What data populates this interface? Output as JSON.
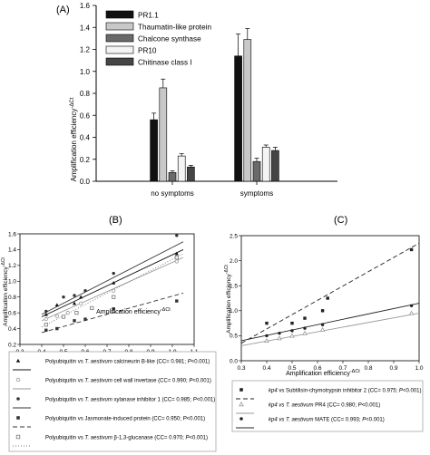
{
  "chart_data": [
    {
      "panel": "(A)",
      "type": "bar",
      "ylabel": "Amplification efficiency",
      "ylabel_sup": "-ΔCt",
      "ylim": [
        0,
        1.6
      ],
      "yticks": [
        "0.0",
        "0.2",
        "0.4",
        "0.6",
        "0.8",
        "1.0",
        "1.2",
        "1.4",
        "1.6"
      ],
      "categories": [
        "no symptoms",
        "symptoms"
      ],
      "legend_position": "top-left",
      "series": [
        {
          "name": "PR1.1",
          "color": "#111111",
          "values": [
            0.56,
            1.14
          ],
          "errors": [
            0.06,
            0.2
          ]
        },
        {
          "name": "Thaumatin-like protein",
          "color": "#c8c8c8",
          "values": [
            0.85,
            1.29
          ],
          "errors": [
            0.08,
            0.1
          ]
        },
        {
          "name": "Chalcone synthase",
          "color": "#6a6a6a",
          "values": [
            0.08,
            0.18
          ],
          "errors": [
            0.015,
            0.03
          ]
        },
        {
          "name": "PR10",
          "color": "#f4f4f4",
          "values": [
            0.23,
            0.31
          ],
          "errors": [
            0.02,
            0.02
          ]
        },
        {
          "name": "Chitinase class I",
          "color": "#454545",
          "values": [
            0.13,
            0.28
          ],
          "errors": [
            0.015,
            0.03
          ]
        }
      ]
    },
    {
      "panel": "(B)",
      "type": "scatter",
      "xlabel": "Amplification efficiency",
      "xlabel_sup": "-ΔCt",
      "ylabel": "Amplification efficiency",
      "ylabel_sup": "-ΔCt",
      "xlim": [
        0.3,
        1.1
      ],
      "ylim": [
        0.2,
        1.6
      ],
      "xticks": [
        "0.3",
        "0.4",
        "0.5",
        "0.6",
        "0.7",
        "0.8",
        "0.9",
        "1.0",
        "1.1"
      ],
      "yticks": [
        "0.2",
        "0.4",
        "0.6",
        "0.8",
        "1.0",
        "1.2",
        "1.4",
        "1.6"
      ],
      "series": [
        {
          "symbol": "triangle",
          "dash": "",
          "color": "#111111",
          "points": [
            [
              0.42,
              0.58
            ],
            [
              0.47,
              0.7
            ],
            [
              0.55,
              0.72
            ],
            [
              0.58,
              0.8
            ],
            [
              0.73,
              0.98
            ],
            [
              1.02,
              1.35
            ]
          ],
          "line": [
            [
              0.4,
              0.55
            ],
            [
              1.05,
              1.4
            ]
          ],
          "legend": [
            "Polyubiquitin vs ",
            "T. aestivum",
            " calcineurin B-like (CC= 0.981; ",
            "P",
            "<0.001)"
          ]
        },
        {
          "symbol": "circle-open",
          "dash": "",
          "color": "#999999",
          "points": [
            [
              0.42,
              0.52
            ],
            [
              0.47,
              0.56
            ],
            [
              0.52,
              0.6
            ],
            [
              0.58,
              0.72
            ],
            [
              0.73,
              0.88
            ],
            [
              1.02,
              1.25
            ]
          ],
          "line": [
            [
              0.4,
              0.5
            ],
            [
              1.05,
              1.3
            ]
          ],
          "legend": [
            "Polyubiquitin vs ",
            "T. aestivum",
            " cell wall invertase (CC= 0.990; ",
            "P",
            "<0.001)"
          ]
        },
        {
          "symbol": "circle",
          "dash": "",
          "color": "#333333",
          "points": [
            [
              0.42,
              0.62
            ],
            [
              0.5,
              0.8
            ],
            [
              0.55,
              0.82
            ],
            [
              0.6,
              0.88
            ],
            [
              0.73,
              1.1
            ],
            [
              1.02,
              1.58
            ]
          ],
          "line": [
            [
              0.4,
              0.58
            ],
            [
              1.05,
              1.5
            ]
          ],
          "legend": [
            "Polyubiquitin vs ",
            "T. aestivum",
            " xylanase inhibitor 1 (CC= 0.985; ",
            "P",
            "<0.001)"
          ]
        },
        {
          "symbol": "square",
          "dash": "5,3",
          "color": "#333333",
          "points": [
            [
              0.42,
              0.38
            ],
            [
              0.47,
              0.4
            ],
            [
              0.55,
              0.5
            ],
            [
              0.6,
              0.52
            ],
            [
              0.73,
              0.65
            ],
            [
              1.02,
              0.75
            ]
          ],
          "line": [
            [
              0.4,
              0.35
            ],
            [
              1.05,
              0.85
            ]
          ],
          "legend": [
            "Polyubiquitin vs Jasmonate-induced protein (CC= 0.950; ",
            "",
            "",
            "P",
            "<0.001)"
          ]
        },
        {
          "symbol": "square-open",
          "dash": "1,2",
          "color": "#777777",
          "points": [
            [
              0.42,
              0.45
            ],
            [
              0.5,
              0.55
            ],
            [
              0.56,
              0.6
            ],
            [
              0.63,
              0.66
            ],
            [
              0.73,
              0.8
            ],
            [
              1.02,
              1.3
            ]
          ],
          "line": [
            [
              0.4,
              0.42
            ],
            [
              1.05,
              1.35
            ]
          ],
          "legend": [
            "Polyubiquitin vs ",
            "T. aestivum",
            " β-1,3-glucanase (CC= 0.970; ",
            "P",
            "<0.001)"
          ]
        }
      ]
    },
    {
      "panel": "(C)",
      "type": "scatter",
      "xlabel": "Amplification efficiency",
      "xlabel_sup": "-ΔCt",
      "ylabel": "Amplification efficiency",
      "ylabel_sup": "-ΔCt",
      "xlim": [
        0.3,
        1.0
      ],
      "ylim": [
        0.0,
        2.5
      ],
      "xticks": [
        "0.3",
        "0.4",
        "0.5",
        "0.6",
        "0.7",
        "0.8",
        "0.9",
        "1.0"
      ],
      "yticks": [
        "0.0",
        "0.5",
        "1.0",
        "1.5",
        "2.0",
        "2.5"
      ],
      "series": [
        {
          "symbol": "square",
          "dash": "5,3",
          "color": "#222222",
          "points": [
            [
              0.4,
              0.75
            ],
            [
              0.5,
              0.75
            ],
            [
              0.55,
              0.85
            ],
            [
              0.62,
              1.0
            ],
            [
              0.64,
              1.25
            ],
            [
              0.97,
              2.22
            ]
          ],
          "line": [
            [
              0.3,
              0.35
            ],
            [
              1.0,
              2.35
            ]
          ],
          "legend": [
            "kp4",
            " vs Subtilisin-chymotrypsin inhibitor 2 (CC= 0.975; ",
            "P",
            "<0.001)"
          ]
        },
        {
          "symbol": "triangle-open",
          "dash": "",
          "color": "#999999",
          "points": [
            [
              0.4,
              0.4
            ],
            [
              0.45,
              0.45
            ],
            [
              0.5,
              0.5
            ],
            [
              0.55,
              0.55
            ],
            [
              0.62,
              0.62
            ],
            [
              0.97,
              0.95
            ]
          ],
          "line": [
            [
              0.3,
              0.3
            ],
            [
              1.0,
              0.95
            ]
          ],
          "legend": [
            "kp4 vs T. aestivum",
            " PR4 (CC= 0.980; ",
            "P",
            "<0.001)"
          ]
        },
        {
          "symbol": "circle",
          "dash": "",
          "color": "#222222",
          "points": [
            [
              0.4,
              0.5
            ],
            [
              0.45,
              0.55
            ],
            [
              0.5,
              0.6
            ],
            [
              0.55,
              0.65
            ],
            [
              0.62,
              0.72
            ],
            [
              0.97,
              1.1
            ]
          ],
          "line": [
            [
              0.3,
              0.4
            ],
            [
              1.0,
              1.15
            ]
          ],
          "legend": [
            "kp4 vs T. aestivum",
            " MATE (CC= 0.993; ",
            "P",
            "<0.001)"
          ]
        }
      ]
    }
  ]
}
